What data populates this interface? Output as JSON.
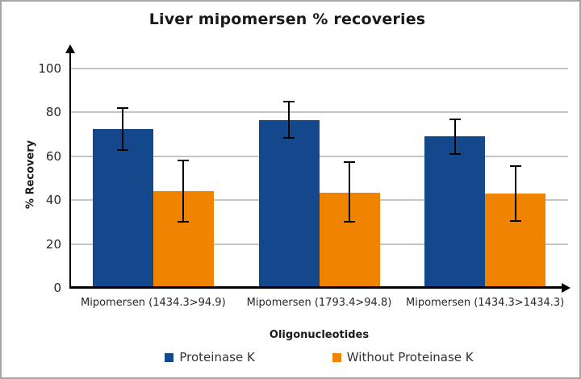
{
  "chart_data": {
    "type": "bar",
    "title": "Liver mipomersen % recoveries",
    "xlabel": "Oligonucleotides",
    "ylabel": "% Recovery",
    "ylim": [
      0,
      100
    ],
    "yticks": [
      0,
      20,
      40,
      60,
      80,
      100
    ],
    "grid": true,
    "legend_position": "bottom",
    "categories": [
      "Mipomersen (1434.3>94.9)",
      "Mipomersen (1793.4>94.8)",
      "Mipomersen (1434.3>1434.3)"
    ],
    "series": [
      {
        "name": "Proteinase K",
        "color": "#14488C",
        "values": [
          72.5,
          76.5,
          69
        ],
        "error_upper": [
          82,
          85,
          77
        ],
        "error_lower": [
          63,
          68.5,
          61
        ]
      },
      {
        "name": "Without Proteinase K",
        "color": "#F08400",
        "values": [
          44,
          43.5,
          43
        ],
        "error_upper": [
          58,
          57.5,
          55.5
        ],
        "error_lower": [
          30,
          30,
          30.5
        ]
      }
    ],
    "error_bar_color": "#000000"
  },
  "frame": {
    "border_color": "#A6A6A6",
    "background": "#FFFFFF",
    "gridline_color": "#C4C4C4",
    "axis_color": "#000000",
    "text_color": "#262626"
  }
}
